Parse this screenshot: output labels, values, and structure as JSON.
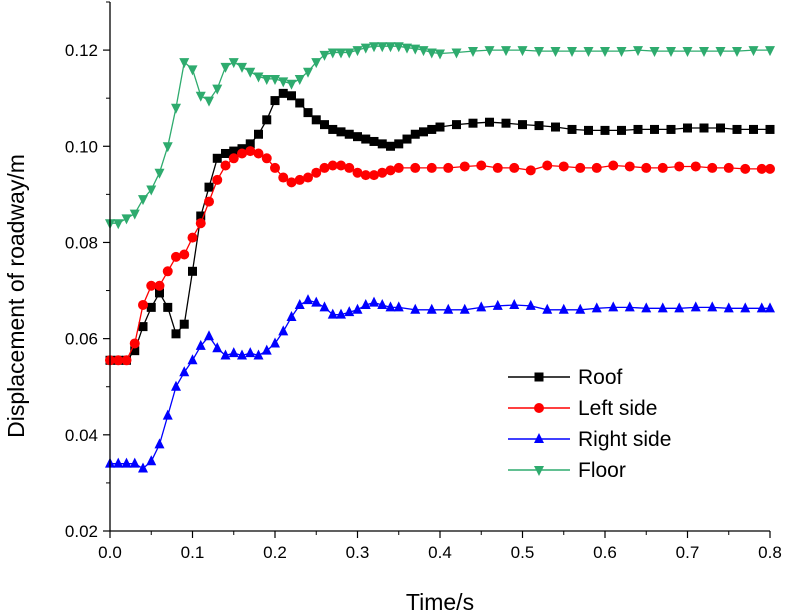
{
  "chart_data": {
    "type": "line",
    "title": "",
    "xlabel": "Time/s",
    "ylabel": "Displacement of roadway/m",
    "xlim": [
      0.0,
      0.8
    ],
    "ylim": [
      0.02,
      0.13
    ],
    "x_ticks": [
      0.0,
      0.1,
      0.2,
      0.3,
      0.4,
      0.5,
      0.6,
      0.7,
      0.8
    ],
    "x_tick_labels": [
      "0.0",
      "0.1",
      "0.2",
      "0.3",
      "0.4",
      "0.5",
      "0.6",
      "0.7",
      "0.8"
    ],
    "y_ticks": [
      0.02,
      0.04,
      0.06,
      0.08,
      0.1,
      0.12
    ],
    "y_tick_labels": [
      "0.02",
      "0.04",
      "0.06",
      "0.08",
      "0.10",
      "0.12"
    ],
    "grid": false,
    "legend_position": "bottom-right",
    "series": [
      {
        "name": "Roof",
        "color": "#000000",
        "marker": "square",
        "points": [
          [
            0.0,
            0.0555
          ],
          [
            0.01,
            0.0555
          ],
          [
            0.02,
            0.0555
          ],
          [
            0.03,
            0.0575
          ],
          [
            0.04,
            0.0625
          ],
          [
            0.05,
            0.0665
          ],
          [
            0.06,
            0.0695
          ],
          [
            0.07,
            0.0665
          ],
          [
            0.08,
            0.061
          ],
          [
            0.09,
            0.063
          ],
          [
            0.1,
            0.074
          ],
          [
            0.11,
            0.0855
          ],
          [
            0.12,
            0.0915
          ],
          [
            0.13,
            0.0975
          ],
          [
            0.14,
            0.0985
          ],
          [
            0.15,
            0.099
          ],
          [
            0.16,
            0.0995
          ],
          [
            0.17,
            0.1005
          ],
          [
            0.18,
            0.1025
          ],
          [
            0.19,
            0.1055
          ],
          [
            0.2,
            0.1095
          ],
          [
            0.21,
            0.111
          ],
          [
            0.22,
            0.1105
          ],
          [
            0.23,
            0.109
          ],
          [
            0.24,
            0.107
          ],
          [
            0.25,
            0.1055
          ],
          [
            0.26,
            0.1045
          ],
          [
            0.27,
            0.1035
          ],
          [
            0.28,
            0.103
          ],
          [
            0.29,
            0.1025
          ],
          [
            0.3,
            0.102
          ],
          [
            0.31,
            0.1015
          ],
          [
            0.32,
            0.101
          ],
          [
            0.33,
            0.1005
          ],
          [
            0.34,
            0.1
          ],
          [
            0.35,
            0.1005
          ],
          [
            0.36,
            0.1015
          ],
          [
            0.37,
            0.1025
          ],
          [
            0.38,
            0.103
          ],
          [
            0.39,
            0.1035
          ],
          [
            0.4,
            0.104
          ],
          [
            0.42,
            0.1045
          ],
          [
            0.44,
            0.1048
          ],
          [
            0.46,
            0.105
          ],
          [
            0.48,
            0.1048
          ],
          [
            0.5,
            0.1045
          ],
          [
            0.52,
            0.1043
          ],
          [
            0.54,
            0.104
          ],
          [
            0.56,
            0.1035
          ],
          [
            0.58,
            0.1033
          ],
          [
            0.6,
            0.1033
          ],
          [
            0.62,
            0.1033
          ],
          [
            0.64,
            0.1035
          ],
          [
            0.66,
            0.1035
          ],
          [
            0.68,
            0.1035
          ],
          [
            0.7,
            0.1038
          ],
          [
            0.72,
            0.1038
          ],
          [
            0.74,
            0.1038
          ],
          [
            0.76,
            0.1035
          ],
          [
            0.78,
            0.1035
          ],
          [
            0.8,
            0.1035
          ]
        ]
      },
      {
        "name": "Left side",
        "color": "#ff0000",
        "marker": "circle",
        "points": [
          [
            0.0,
            0.0555
          ],
          [
            0.01,
            0.0555
          ],
          [
            0.02,
            0.0555
          ],
          [
            0.03,
            0.059
          ],
          [
            0.04,
            0.067
          ],
          [
            0.05,
            0.071
          ],
          [
            0.06,
            0.071
          ],
          [
            0.07,
            0.074
          ],
          [
            0.08,
            0.077
          ],
          [
            0.09,
            0.0775
          ],
          [
            0.1,
            0.081
          ],
          [
            0.11,
            0.084
          ],
          [
            0.12,
            0.0885
          ],
          [
            0.13,
            0.093
          ],
          [
            0.14,
            0.096
          ],
          [
            0.15,
            0.0975
          ],
          [
            0.16,
            0.0985
          ],
          [
            0.17,
            0.099
          ],
          [
            0.18,
            0.0985
          ],
          [
            0.19,
            0.0975
          ],
          [
            0.2,
            0.0955
          ],
          [
            0.21,
            0.0935
          ],
          [
            0.22,
            0.0925
          ],
          [
            0.23,
            0.093
          ],
          [
            0.24,
            0.0935
          ],
          [
            0.25,
            0.0945
          ],
          [
            0.26,
            0.0955
          ],
          [
            0.27,
            0.096
          ],
          [
            0.28,
            0.096
          ],
          [
            0.29,
            0.0955
          ],
          [
            0.3,
            0.0945
          ],
          [
            0.31,
            0.094
          ],
          [
            0.32,
            0.094
          ],
          [
            0.33,
            0.0945
          ],
          [
            0.34,
            0.095
          ],
          [
            0.35,
            0.0955
          ],
          [
            0.37,
            0.0955
          ],
          [
            0.39,
            0.0955
          ],
          [
            0.41,
            0.0955
          ],
          [
            0.43,
            0.0958
          ],
          [
            0.45,
            0.096
          ],
          [
            0.47,
            0.0955
          ],
          [
            0.49,
            0.0955
          ],
          [
            0.51,
            0.095
          ],
          [
            0.53,
            0.096
          ],
          [
            0.55,
            0.0958
          ],
          [
            0.57,
            0.0955
          ],
          [
            0.59,
            0.0955
          ],
          [
            0.61,
            0.096
          ],
          [
            0.63,
            0.0958
          ],
          [
            0.65,
            0.0955
          ],
          [
            0.67,
            0.0955
          ],
          [
            0.69,
            0.0958
          ],
          [
            0.71,
            0.0958
          ],
          [
            0.73,
            0.0955
          ],
          [
            0.75,
            0.0955
          ],
          [
            0.77,
            0.0953
          ],
          [
            0.79,
            0.0953
          ],
          [
            0.8,
            0.0953
          ]
        ]
      },
      {
        "name": "Right side",
        "color": "#0000ff",
        "marker": "triangle-up",
        "points": [
          [
            0.0,
            0.034
          ],
          [
            0.01,
            0.034
          ],
          [
            0.02,
            0.034
          ],
          [
            0.03,
            0.034
          ],
          [
            0.04,
            0.033
          ],
          [
            0.05,
            0.0345
          ],
          [
            0.06,
            0.038
          ],
          [
            0.07,
            0.044
          ],
          [
            0.08,
            0.05
          ],
          [
            0.09,
            0.053
          ],
          [
            0.1,
            0.0555
          ],
          [
            0.11,
            0.0585
          ],
          [
            0.12,
            0.0605
          ],
          [
            0.13,
            0.058
          ],
          [
            0.14,
            0.0565
          ],
          [
            0.15,
            0.057
          ],
          [
            0.16,
            0.0565
          ],
          [
            0.17,
            0.057
          ],
          [
            0.18,
            0.0565
          ],
          [
            0.19,
            0.0575
          ],
          [
            0.2,
            0.059
          ],
          [
            0.21,
            0.0615
          ],
          [
            0.22,
            0.0645
          ],
          [
            0.23,
            0.067
          ],
          [
            0.24,
            0.068
          ],
          [
            0.25,
            0.0675
          ],
          [
            0.26,
            0.0665
          ],
          [
            0.27,
            0.065
          ],
          [
            0.28,
            0.065
          ],
          [
            0.29,
            0.0655
          ],
          [
            0.3,
            0.066
          ],
          [
            0.31,
            0.067
          ],
          [
            0.32,
            0.0675
          ],
          [
            0.33,
            0.067
          ],
          [
            0.34,
            0.0665
          ],
          [
            0.35,
            0.0665
          ],
          [
            0.37,
            0.066
          ],
          [
            0.39,
            0.066
          ],
          [
            0.41,
            0.066
          ],
          [
            0.43,
            0.066
          ],
          [
            0.45,
            0.0665
          ],
          [
            0.47,
            0.0668
          ],
          [
            0.49,
            0.067
          ],
          [
            0.51,
            0.0668
          ],
          [
            0.53,
            0.066
          ],
          [
            0.55,
            0.066
          ],
          [
            0.57,
            0.066
          ],
          [
            0.59,
            0.0663
          ],
          [
            0.61,
            0.0665
          ],
          [
            0.63,
            0.0665
          ],
          [
            0.65,
            0.0663
          ],
          [
            0.67,
            0.0663
          ],
          [
            0.69,
            0.0663
          ],
          [
            0.71,
            0.0665
          ],
          [
            0.73,
            0.0665
          ],
          [
            0.75,
            0.0663
          ],
          [
            0.77,
            0.0663
          ],
          [
            0.79,
            0.0663
          ],
          [
            0.8,
            0.0663
          ]
        ]
      },
      {
        "name": "Floor",
        "color": "#2eab6e",
        "marker": "triangle-down",
        "points": [
          [
            0.0,
            0.084
          ],
          [
            0.01,
            0.084
          ],
          [
            0.02,
            0.085
          ],
          [
            0.03,
            0.086
          ],
          [
            0.04,
            0.089
          ],
          [
            0.05,
            0.091
          ],
          [
            0.06,
            0.0945
          ],
          [
            0.07,
            0.1
          ],
          [
            0.08,
            0.108
          ],
          [
            0.09,
            0.1175
          ],
          [
            0.1,
            0.116
          ],
          [
            0.11,
            0.1105
          ],
          [
            0.12,
            0.1095
          ],
          [
            0.13,
            0.112
          ],
          [
            0.14,
            0.1165
          ],
          [
            0.15,
            0.1175
          ],
          [
            0.16,
            0.1165
          ],
          [
            0.17,
            0.1155
          ],
          [
            0.18,
            0.1145
          ],
          [
            0.19,
            0.114
          ],
          [
            0.2,
            0.114
          ],
          [
            0.21,
            0.1135
          ],
          [
            0.22,
            0.113
          ],
          [
            0.23,
            0.114
          ],
          [
            0.24,
            0.1155
          ],
          [
            0.25,
            0.1175
          ],
          [
            0.26,
            0.119
          ],
          [
            0.27,
            0.1195
          ],
          [
            0.28,
            0.1195
          ],
          [
            0.29,
            0.1195
          ],
          [
            0.3,
            0.12
          ],
          [
            0.31,
            0.1205
          ],
          [
            0.32,
            0.1208
          ],
          [
            0.33,
            0.1208
          ],
          [
            0.34,
            0.1208
          ],
          [
            0.35,
            0.1208
          ],
          [
            0.36,
            0.1205
          ],
          [
            0.37,
            0.1203
          ],
          [
            0.38,
            0.12
          ],
          [
            0.39,
            0.1195
          ],
          [
            0.4,
            0.1193
          ],
          [
            0.42,
            0.1195
          ],
          [
            0.44,
            0.1198
          ],
          [
            0.46,
            0.12
          ],
          [
            0.48,
            0.12
          ],
          [
            0.5,
            0.12
          ],
          [
            0.52,
            0.1198
          ],
          [
            0.54,
            0.1198
          ],
          [
            0.56,
            0.1198
          ],
          [
            0.58,
            0.1198
          ],
          [
            0.6,
            0.1198
          ],
          [
            0.62,
            0.1198
          ],
          [
            0.64,
            0.12
          ],
          [
            0.66,
            0.1198
          ],
          [
            0.68,
            0.1198
          ],
          [
            0.7,
            0.1198
          ],
          [
            0.72,
            0.1198
          ],
          [
            0.74,
            0.1198
          ],
          [
            0.76,
            0.1198
          ],
          [
            0.78,
            0.12
          ],
          [
            0.8,
            0.12
          ]
        ]
      }
    ]
  }
}
